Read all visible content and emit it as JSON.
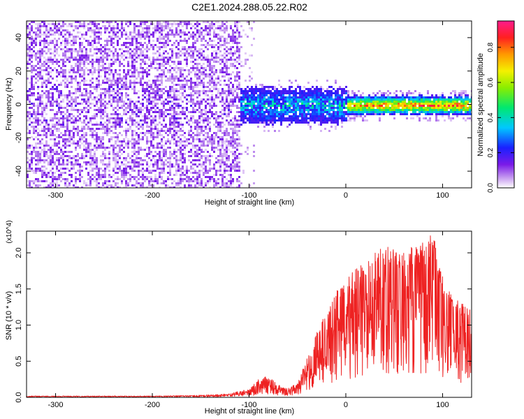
{
  "title": "C2E1.2024.288.05.22.R02",
  "colors": {
    "snr_line": "#ee2222",
    "spectrogram_low": "#d9bff5",
    "spectrogram_mid": "#5a10e0",
    "background": "#ffffff"
  },
  "colorbar": {
    "label": "Normalized spectral amplitude",
    "ticks": [
      "0.0",
      "0.2",
      "0.4",
      "0.6",
      "0.8"
    ],
    "range": [
      0,
      0.95
    ],
    "colormap": "rainbow (white-purple-blue-cyan-green-yellow-orange-red-magenta)"
  },
  "chart_data": [
    {
      "type": "heatmap",
      "title": "C2E1.2024.288.05.22.R02",
      "xlabel": "Height of straight line (km)",
      "ylabel": "Frequency (Hz)",
      "xlim": [
        -330,
        130
      ],
      "ylim": [
        -50,
        50
      ],
      "x_ticks": [
        -300,
        -200,
        -100,
        0,
        100
      ],
      "x_tick_labels": [
        "-300",
        "-200",
        "-100",
        "0",
        "100"
      ],
      "y_ticks": [
        -40,
        -20,
        0,
        20,
        40
      ],
      "y_tick_labels": [
        "-40",
        "-20",
        "0",
        "20",
        "40"
      ],
      "value_range": [
        0,
        0.95
      ],
      "regions": [
        {
          "x_range": [
            -330,
            -105
          ],
          "freq_range": [
            -50,
            50
          ],
          "amplitude": "0.0-0.15 (diffuse noise)"
        },
        {
          "x_range": [
            -105,
            0
          ],
          "freq_range": [
            -10,
            10
          ],
          "amplitude": "0.1-0.45 (concentrated band)"
        },
        {
          "x_range": [
            0,
            130
          ],
          "freq_range": [
            -5,
            5
          ],
          "amplitude": "0.3-0.9 (strong narrow band near 0 Hz)"
        }
      ]
    },
    {
      "type": "line",
      "xlabel": "Height of straight line (km)",
      "ylabel": "SNR (10 * v/v)",
      "y_multiplier": "(x10^4)",
      "xlim": [
        -330,
        130
      ],
      "ylim": [
        0,
        2.3
      ],
      "x_ticks": [
        -300,
        -200,
        -100,
        0,
        100
      ],
      "x_tick_labels": [
        "-300",
        "-200",
        "-100",
        "0",
        "100"
      ],
      "y_ticks": [
        0,
        0.5,
        1.0,
        1.5,
        2.0
      ],
      "y_tick_labels": [
        "0.0",
        "0.5",
        "1.0",
        "1.5",
        "2.0"
      ],
      "series": [
        {
          "x": [
            -330,
            -300,
            -250,
            -200,
            -150,
            -120,
            -100,
            -90,
            -80,
            -70,
            -60,
            -50,
            -40,
            -30,
            -20,
            -10,
            0,
            10,
            20,
            30,
            40,
            50,
            60,
            70,
            80,
            90,
            100,
            110,
            120,
            130
          ],
          "y": [
            0.02,
            0.02,
            0.02,
            0.02,
            0.03,
            0.05,
            0.12,
            0.25,
            0.3,
            0.18,
            0.12,
            0.2,
            0.55,
            0.9,
            1.2,
            1.5,
            1.6,
            1.8,
            1.9,
            2.0,
            2.1,
            2.05,
            2.0,
            2.1,
            2.15,
            2.3,
            1.7,
            1.4,
            1.3,
            1.2
          ]
        }
      ]
    }
  ]
}
